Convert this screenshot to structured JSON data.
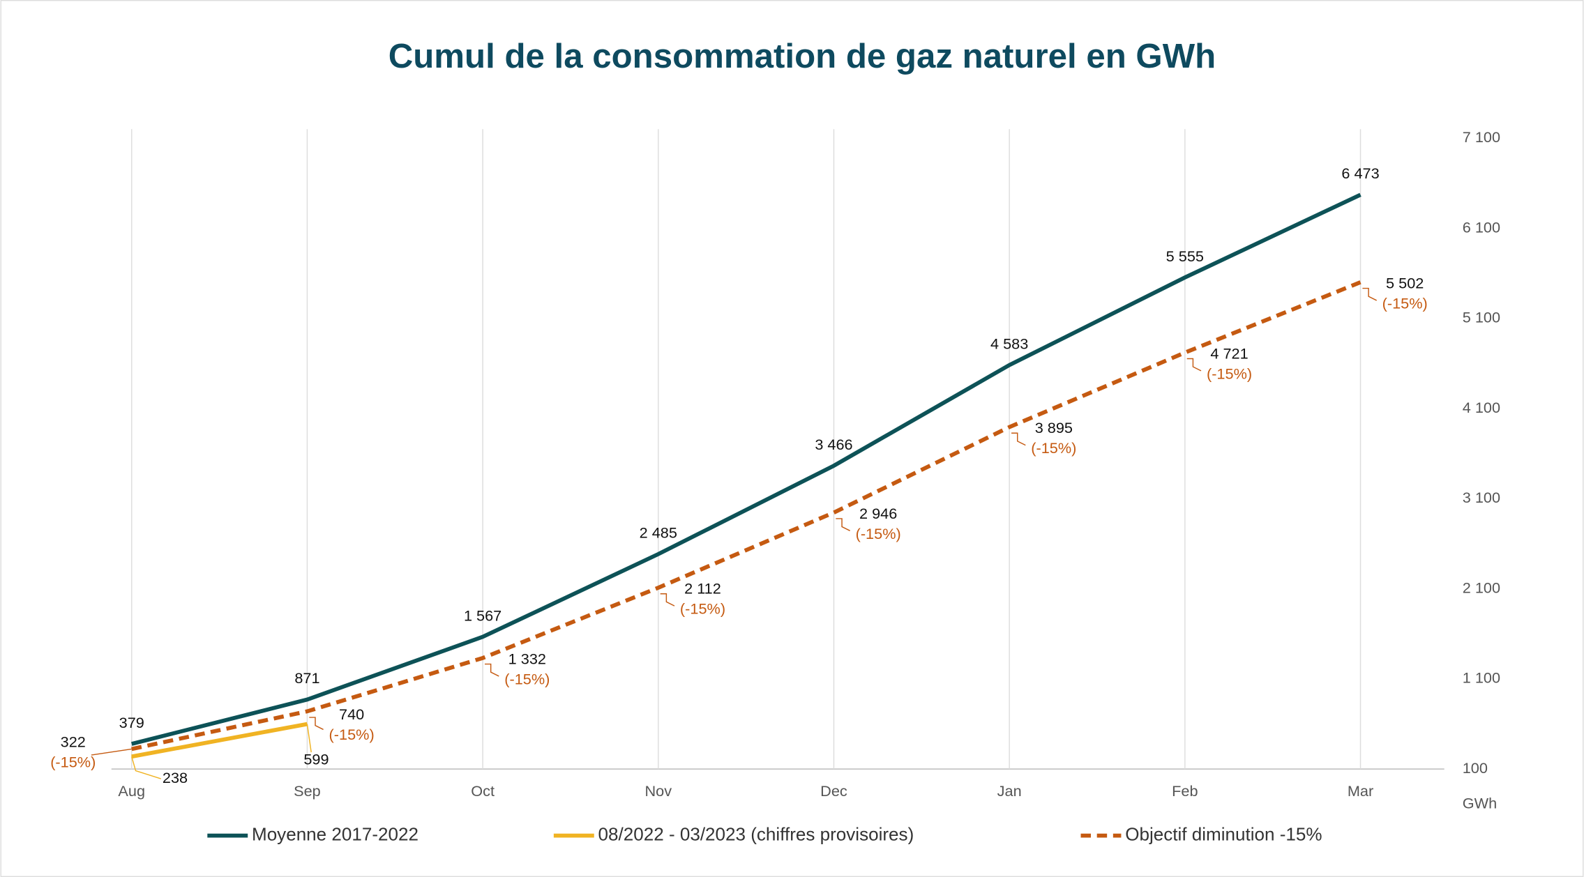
{
  "chart_data": {
    "type": "line",
    "title": "Cumul de la consommation de gaz naturel en GWh",
    "categories": [
      "Aug",
      "Sep",
      "Oct",
      "Nov",
      "Dec",
      "Jan",
      "Feb",
      "Mar"
    ],
    "series": [
      {
        "name": "Moyenne 2017-2022",
        "color": "#0d5257",
        "dash": false,
        "values": [
          379,
          871,
          1567,
          2485,
          3466,
          4583,
          5555,
          6473
        ],
        "value_labels": [
          "379",
          "871",
          "1 567",
          "2 485",
          "3 466",
          "4 583",
          "5 555",
          "6 473"
        ]
      },
      {
        "name": "08/2022 - 03/2023 (chiffres provisoires)",
        "color": "#f0b323",
        "dash": false,
        "values": [
          238,
          599,
          null,
          null,
          null,
          null,
          null,
          null
        ],
        "value_labels": [
          "238",
          "599",
          null,
          null,
          null,
          null,
          null,
          null
        ]
      },
      {
        "name": "Objectif diminution -15%",
        "color": "#c55a11",
        "dash": true,
        "values": [
          322,
          740,
          1332,
          2112,
          2946,
          3895,
          4721,
          5502
        ],
        "value_labels": [
          "322",
          "740",
          "1 332",
          "2 112",
          "2 946",
          "3 895",
          "4 721",
          "5 502"
        ],
        "label_note": "(-15%)"
      }
    ],
    "y_axis_label": "GWh",
    "ylim": [
      100,
      7100
    ],
    "yticks": [
      {
        "value": 100,
        "label": "100"
      },
      {
        "value": 1100,
        "label": "1 100"
      },
      {
        "value": 2100,
        "label": "2 100"
      },
      {
        "value": 3100,
        "label": "3 100"
      },
      {
        "value": 4100,
        "label": "4 100"
      },
      {
        "value": 5100,
        "label": "5 100"
      },
      {
        "value": 6100,
        "label": "6 100"
      },
      {
        "value": 7100,
        "label": "7 100"
      }
    ],
    "y_axis_side": "right",
    "grid": "vertical",
    "legend": "bottom"
  }
}
